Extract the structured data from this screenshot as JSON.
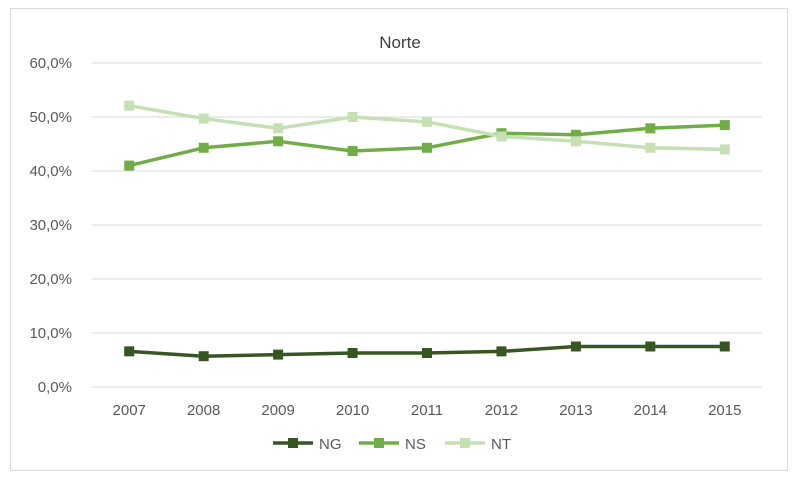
{
  "chart_data": {
    "type": "line",
    "title": "Norte",
    "xlabel": "",
    "ylabel": "",
    "categories": [
      "2007",
      "2008",
      "2009",
      "2010",
      "2011",
      "2012",
      "2013",
      "2014",
      "2015"
    ],
    "y_ticks": [
      "0,0%",
      "10,0%",
      "20,0%",
      "30,0%",
      "40,0%",
      "50,0%",
      "60,0%"
    ],
    "ylim": [
      0,
      0.6
    ],
    "grid": true,
    "legend_position": "bottom",
    "series": [
      {
        "name": "NG",
        "color": "#375623",
        "values": [
          0.066,
          0.057,
          0.06,
          0.063,
          0.063,
          0.066,
          0.075,
          0.075,
          0.075
        ]
      },
      {
        "name": "NS",
        "color": "#70ad47",
        "values": [
          0.41,
          0.443,
          0.455,
          0.437,
          0.443,
          0.47,
          0.467,
          0.479,
          0.485
        ]
      },
      {
        "name": "NT",
        "color": "#c5e0b4",
        "values": [
          0.521,
          0.497,
          0.479,
          0.5,
          0.491,
          0.464,
          0.455,
          0.443,
          0.44
        ]
      }
    ]
  }
}
